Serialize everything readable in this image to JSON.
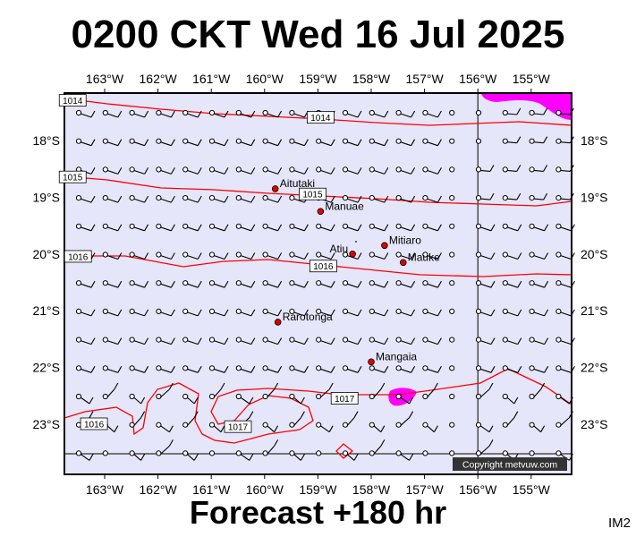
{
  "header": {
    "title": "0200 CKT Wed 16 Jul 2025"
  },
  "footer": {
    "forecast": "Forecast +180 hr",
    "code": "IM2"
  },
  "map": {
    "lon_labels": [
      "163°W",
      "162°W",
      "161°W",
      "160°W",
      "159°W",
      "158°W",
      "157°W",
      "156°W",
      "155°W"
    ],
    "lat_labels": [
      "18°S",
      "19°S",
      "20°S",
      "21°S",
      "22°S",
      "23°S"
    ],
    "copyright": "Copyright metvuw.com",
    "colors": {
      "background": "#e6e6fa",
      "isobar": "#ff0000",
      "rain": "#ff00ff",
      "town": "#dd0000"
    },
    "isobar_labels": [
      {
        "text": "1014",
        "lon": -163.6,
        "lat": -17.3
      },
      {
        "text": "1014",
        "lon": -158.95,
        "lat": -17.6
      },
      {
        "text": "1015",
        "lon": -163.6,
        "lat": -18.65
      },
      {
        "text": "1015",
        "lon": -159.1,
        "lat": -18.95
      },
      {
        "text": "1016",
        "lon": -163.5,
        "lat": -20.05
      },
      {
        "text": "1016",
        "lon": -158.9,
        "lat": -20.22
      },
      {
        "text": "1017",
        "lon": -158.5,
        "lat": -22.55
      },
      {
        "text": "1016",
        "lon": -163.2,
        "lat": -23.0
      },
      {
        "text": "1017",
        "lon": -160.5,
        "lat": -23.05
      }
    ],
    "places": [
      {
        "name": "Aitutaki",
        "lon": -159.8,
        "lat": -18.85
      },
      {
        "name": "Manuae",
        "lon": -158.95,
        "lat": -19.25
      },
      {
        "name": "Mitiaro",
        "lon": -157.75,
        "lat": -19.85
      },
      {
        "name": "Atiu",
        "lon": -158.35,
        "lat": -20.0
      },
      {
        "name": "Mauke",
        "lon": -157.4,
        "lat": -20.15
      },
      {
        "name": "Rarotonga",
        "lon": -159.75,
        "lat": -21.2
      },
      {
        "name": "Mangaia",
        "lon": -158.0,
        "lat": -21.9
      }
    ]
  }
}
